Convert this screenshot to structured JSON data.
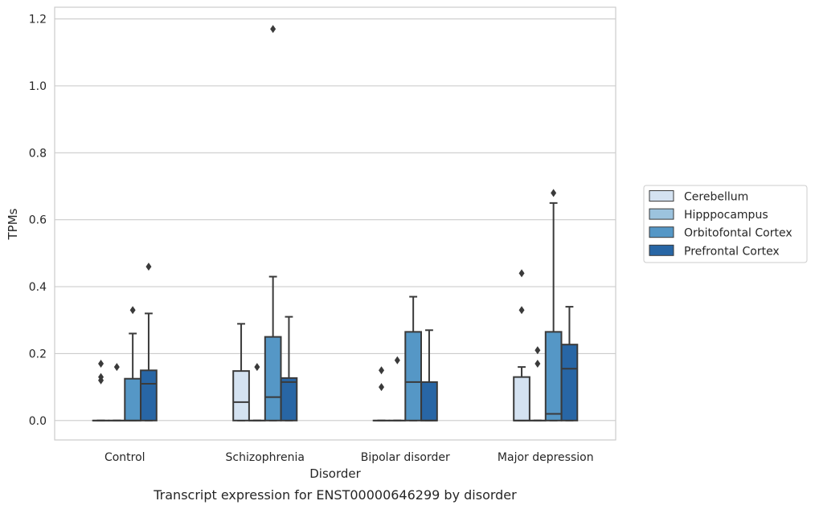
{
  "chart_data": {
    "type": "box",
    "caption": "Transcript expression for ENST00000646299 by disorder",
    "xlabel": "Disorder",
    "ylabel": "TPMs",
    "ylim": [
      -0.058,
      1.235
    ],
    "yticks": [
      "0.0",
      "0.2",
      "0.4",
      "0.6",
      "0.8",
      "1.0",
      "1.2"
    ],
    "ytick_values": [
      0,
      0.2,
      0.4,
      0.6,
      0.8,
      1.0,
      1.2
    ],
    "grid": true,
    "legend_position": "right",
    "categories": [
      "Control",
      "Schizophrenia",
      "Bipolar disorder",
      "Major depression"
    ],
    "series": [
      {
        "name": "Cerebellum",
        "color": "#d4e2f1",
        "boxes": [
          {
            "q1": 0,
            "median": 0,
            "q3": 0,
            "whisker_low": 0,
            "whisker_high": 0,
            "outliers": [
              0.17,
              0.13,
              0.12
            ]
          },
          {
            "q1": 0,
            "median": 0.055,
            "q3": 0.148,
            "whisker_low": 0,
            "whisker_high": 0.289,
            "outliers": []
          },
          {
            "q1": 0,
            "median": 0,
            "q3": 0,
            "whisker_low": 0,
            "whisker_high": 0,
            "outliers": [
              0.15,
              0.1
            ]
          },
          {
            "q1": 0,
            "median": 0,
            "q3": 0.13,
            "whisker_low": 0,
            "whisker_high": 0.16,
            "outliers": [
              0.44,
              0.33
            ]
          }
        ]
      },
      {
        "name": "Hipppocampus",
        "color": "#9cc3de",
        "boxes": [
          {
            "q1": 0,
            "median": 0,
            "q3": 0,
            "whisker_low": 0,
            "whisker_high": 0,
            "outliers": [
              0.16
            ]
          },
          {
            "q1": 0,
            "median": 0,
            "q3": 0,
            "whisker_low": 0,
            "whisker_high": 0,
            "outliers": [
              0.16
            ]
          },
          {
            "q1": 0,
            "median": 0,
            "q3": 0,
            "whisker_low": 0,
            "whisker_high": 0,
            "outliers": [
              0.18
            ]
          },
          {
            "q1": 0,
            "median": 0,
            "q3": 0,
            "whisker_low": 0,
            "whisker_high": 0,
            "outliers": [
              0.21,
              0.17
            ]
          }
        ]
      },
      {
        "name": "Orbitofontal Cortex",
        "color": "#5597c6",
        "boxes": [
          {
            "q1": 0,
            "median": 0,
            "q3": 0.125,
            "whisker_low": 0,
            "whisker_high": 0.26,
            "outliers": [
              0.33
            ]
          },
          {
            "q1": 0,
            "median": 0.07,
            "q3": 0.25,
            "whisker_low": 0,
            "whisker_high": 0.43,
            "outliers": [
              1.17
            ]
          },
          {
            "q1": 0,
            "median": 0.115,
            "q3": 0.265,
            "whisker_low": 0,
            "whisker_high": 0.37,
            "outliers": []
          },
          {
            "q1": 0,
            "median": 0.02,
            "q3": 0.265,
            "whisker_low": 0,
            "whisker_high": 0.65,
            "outliers": [
              0.68
            ]
          }
        ]
      },
      {
        "name": "Prefrontal Cortex",
        "color": "#2866a5",
        "boxes": [
          {
            "q1": 0,
            "median": 0.11,
            "q3": 0.15,
            "whisker_low": 0,
            "whisker_high": 0.32,
            "outliers": [
              0.46
            ]
          },
          {
            "q1": 0,
            "median": 0.115,
            "q3": 0.127,
            "whisker_low": 0,
            "whisker_high": 0.31,
            "outliers": []
          },
          {
            "q1": 0,
            "median": 0,
            "q3": 0.115,
            "whisker_low": 0,
            "whisker_high": 0.27,
            "outliers": []
          },
          {
            "q1": 0,
            "median": 0.155,
            "q3": 0.227,
            "whisker_low": 0,
            "whisker_high": 0.34,
            "outliers": []
          }
        ]
      }
    ]
  }
}
